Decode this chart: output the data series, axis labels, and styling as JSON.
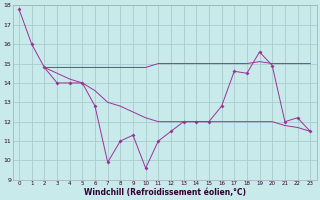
{
  "xlabel": "Windchill (Refroidissement éolien,°C)",
  "background_color": "#c8eaea",
  "line_color": "#993399",
  "grid_color": "#aacccc",
  "series1": [
    [
      0,
      17.8
    ],
    [
      1,
      16.0
    ],
    [
      2,
      14.8
    ],
    [
      3,
      14.0
    ],
    [
      4,
      14.0
    ],
    [
      5,
      14.0
    ],
    [
      6,
      12.8
    ],
    [
      7,
      9.9
    ],
    [
      8,
      11.0
    ],
    [
      9,
      11.3
    ],
    [
      10,
      9.6
    ],
    [
      11,
      11.0
    ],
    [
      12,
      11.5
    ],
    [
      13,
      12.0
    ],
    [
      14,
      12.0
    ],
    [
      15,
      12.0
    ],
    [
      16,
      12.8
    ],
    [
      17,
      14.6
    ],
    [
      18,
      14.5
    ],
    [
      19,
      15.6
    ],
    [
      20,
      14.9
    ],
    [
      21,
      12.0
    ],
    [
      22,
      12.2
    ],
    [
      23,
      11.5
    ]
  ],
  "series2": [
    [
      2,
      14.8
    ],
    [
      3,
      14.8
    ],
    [
      4,
      14.8
    ],
    [
      5,
      14.8
    ],
    [
      6,
      14.8
    ],
    [
      7,
      14.8
    ],
    [
      8,
      14.8
    ],
    [
      9,
      14.8
    ],
    [
      10,
      14.8
    ],
    [
      11,
      15.0
    ],
    [
      12,
      15.0
    ],
    [
      13,
      15.0
    ],
    [
      14,
      15.0
    ],
    [
      15,
      15.0
    ],
    [
      16,
      15.0
    ],
    [
      17,
      15.0
    ],
    [
      18,
      15.0
    ],
    [
      19,
      15.1
    ],
    [
      20,
      15.0
    ],
    [
      21,
      15.0
    ],
    [
      22,
      15.0
    ],
    [
      23,
      15.0
    ]
  ],
  "series3": [
    [
      2,
      14.8
    ],
    [
      3,
      14.5
    ],
    [
      4,
      14.2
    ],
    [
      5,
      14.0
    ],
    [
      6,
      13.6
    ],
    [
      7,
      13.0
    ],
    [
      8,
      12.8
    ],
    [
      9,
      12.5
    ],
    [
      10,
      12.2
    ],
    [
      11,
      12.0
    ],
    [
      12,
      12.0
    ],
    [
      13,
      12.0
    ],
    [
      14,
      12.0
    ],
    [
      15,
      12.0
    ],
    [
      16,
      12.0
    ],
    [
      17,
      12.0
    ],
    [
      18,
      12.0
    ],
    [
      19,
      12.0
    ],
    [
      20,
      12.0
    ],
    [
      21,
      11.8
    ],
    [
      22,
      11.7
    ],
    [
      23,
      11.5
    ]
  ],
  "ylim": [
    9,
    18
  ],
  "xlim": [
    -0.5,
    23.5
  ],
  "yticks": [
    9,
    10,
    11,
    12,
    13,
    14,
    15,
    16,
    17,
    18
  ],
  "xticks": [
    0,
    1,
    2,
    3,
    4,
    5,
    6,
    7,
    8,
    9,
    10,
    11,
    12,
    13,
    14,
    15,
    16,
    17,
    18,
    19,
    20,
    21,
    22,
    23
  ]
}
